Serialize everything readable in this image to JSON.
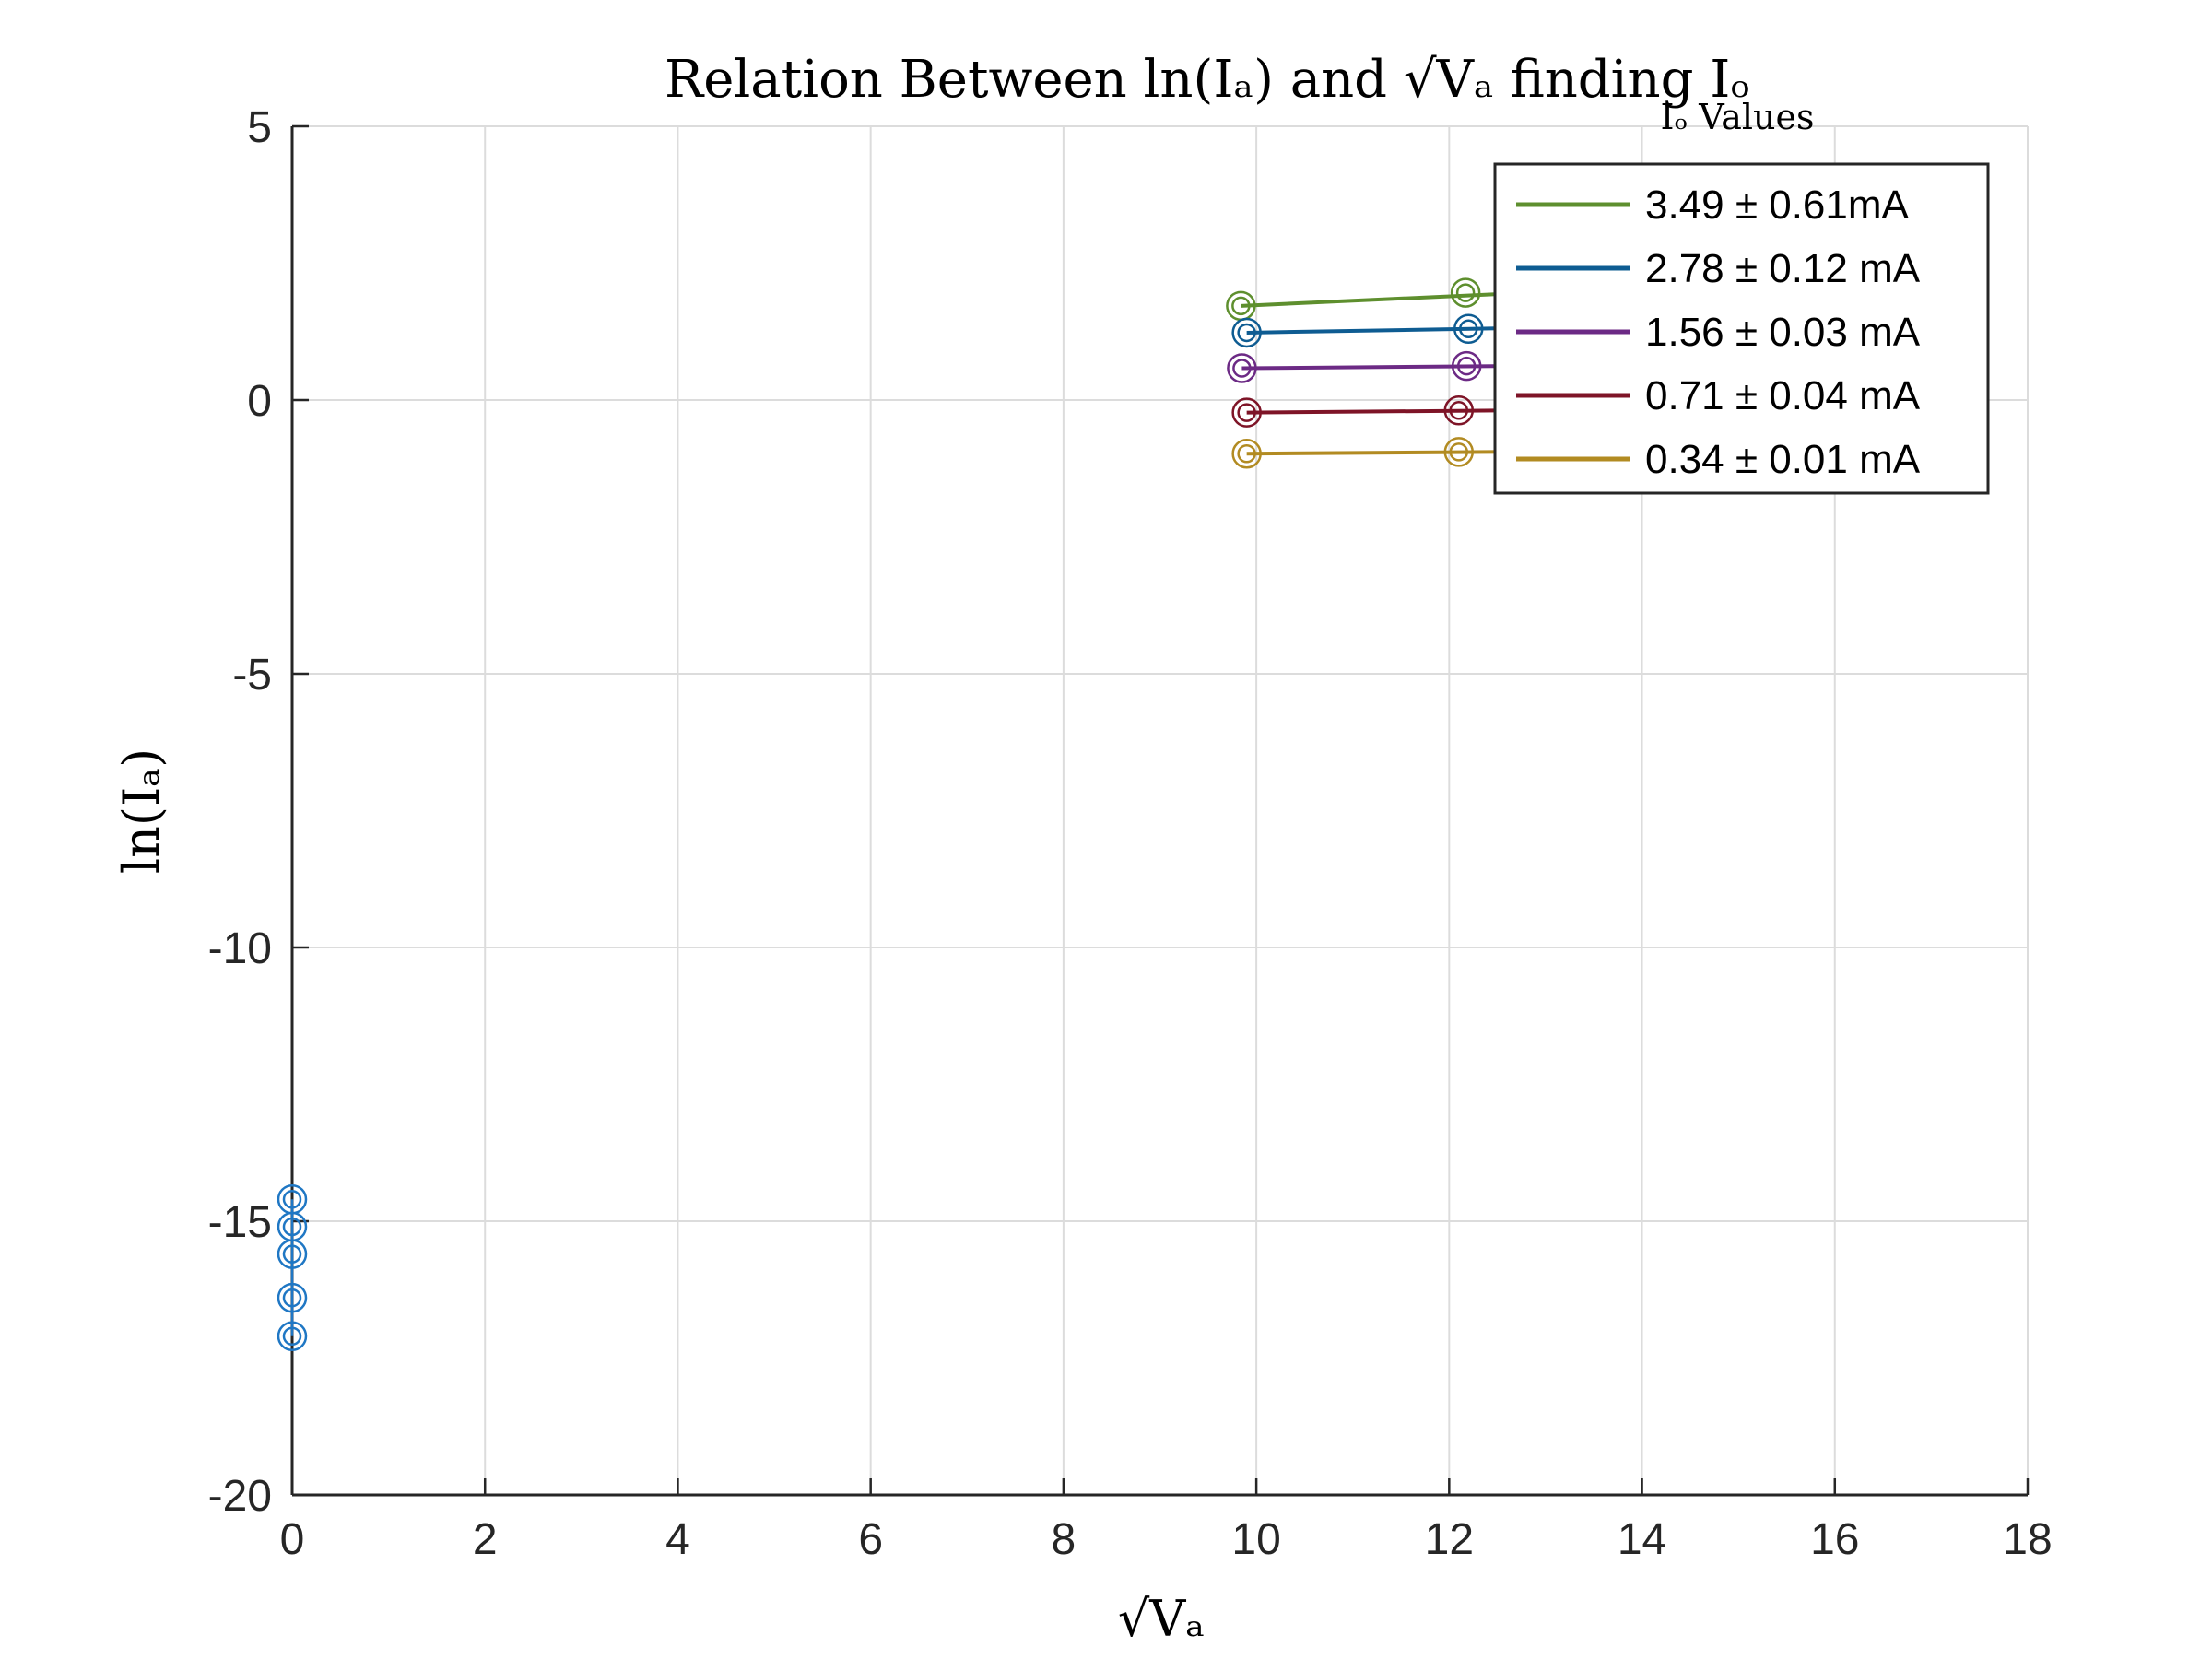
{
  "chart_data": {
    "type": "line",
    "title": "Relation Between ln(Iₐ) and √Vₐ finding Iₒ",
    "xlabel": "√Vₐ",
    "ylabel": "ln(Iₐ)",
    "xlim": [
      0,
      18
    ],
    "ylim": [
      -20,
      5
    ],
    "xticks": [
      "0",
      "2",
      "4",
      "6",
      "8",
      "10",
      "12",
      "14",
      "16",
      "18"
    ],
    "yticks": [
      "5",
      "0",
      "-5",
      "-10",
      "-15",
      "-20"
    ],
    "grid": true,
    "legend": {
      "title": "Iₒ Values",
      "location": "top-right"
    },
    "series": [
      {
        "name": "3.49 ± 0.61mA",
        "color": "#5e8f2e",
        "x": [
          9.84,
          12.17
        ],
        "y": [
          1.72,
          1.96
        ],
        "fit_x": [
          9.84,
          13.2
        ],
        "fit_y": [
          1.72,
          1.99
        ]
      },
      {
        "name": "2.78 ± 0.12 mA",
        "color": "#0e5c92",
        "x": [
          9.9,
          12.2
        ],
        "y": [
          1.23,
          1.3
        ],
        "fit_x": [
          9.9,
          13.2
        ],
        "fit_y": [
          1.23,
          1.33
        ]
      },
      {
        "name": "1.56 ± 0.03 mA",
        "color": "#6c2a85",
        "x": [
          9.85,
          12.18
        ],
        "y": [
          0.58,
          0.62
        ],
        "fit_x": [
          9.85,
          13.2
        ],
        "fit_y": [
          0.58,
          0.63
        ]
      },
      {
        "name": "0.71 ± 0.04 mA",
        "color": "#7e1427",
        "x": [
          9.9,
          12.1
        ],
        "y": [
          -0.23,
          -0.19
        ],
        "fit_x": [
          9.9,
          13.2
        ],
        "fit_y": [
          -0.23,
          -0.18
        ]
      },
      {
        "name": "0.34 ± 0.01 mA",
        "color": "#b28b22",
        "x": [
          9.9,
          12.1
        ],
        "y": [
          -0.98,
          -0.95
        ],
        "fit_x": [
          9.9,
          13.2
        ],
        "fit_y": [
          -0.98,
          -0.94
        ]
      }
    ],
    "extra_points": {
      "color": "#1f77c4",
      "x": [
        0,
        0,
        0,
        0,
        0
      ],
      "y": [
        -14.6,
        -15.1,
        -15.6,
        -16.4,
        -17.1
      ]
    }
  }
}
